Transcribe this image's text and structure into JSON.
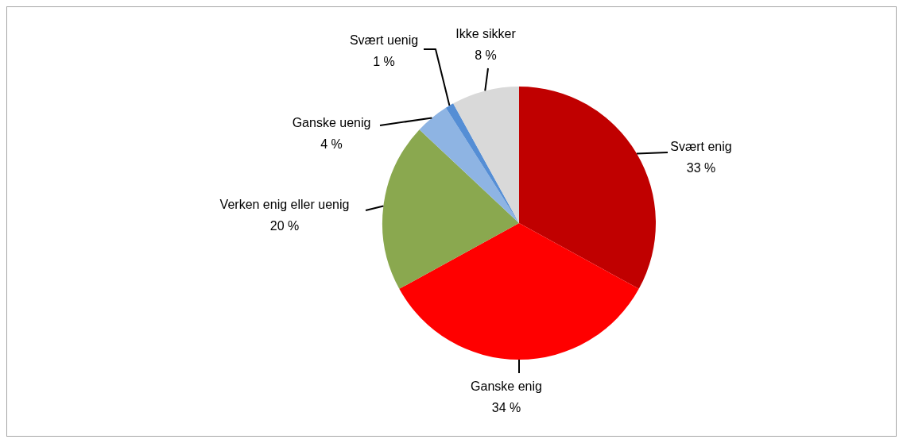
{
  "chart_data": {
    "type": "pie",
    "categories": [
      "Svært enig",
      "Ganske enig",
      "Verken enig eller uenig",
      "Ganske uenig",
      "Svært uenig",
      "Ikke sikker"
    ],
    "values": [
      33,
      34,
      20,
      4,
      1,
      8
    ],
    "value_labels": [
      "33 %",
      "34 %",
      "20 %",
      "4 %",
      "1 %",
      "8 %"
    ],
    "colors": [
      "#c00000",
      "#ff0000",
      "#8aa84f",
      "#8eb4e3",
      "#558ed5",
      "#d9d9d9"
    ],
    "legend": false
  }
}
